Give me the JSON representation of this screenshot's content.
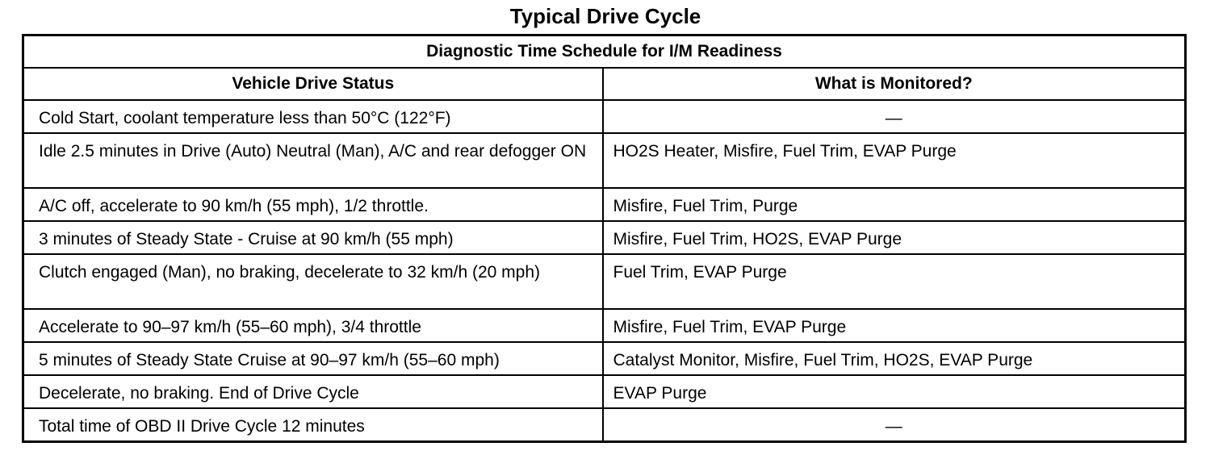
{
  "title": "Typical Drive Cycle",
  "table": {
    "caption": "Diagnostic Time Schedule for I/M Readiness",
    "headers": [
      "Vehicle Drive Status",
      "What is Monitored?"
    ],
    "rows": [
      {
        "status": "Cold Start, coolant temperature less than 50°C (122°F)",
        "monitored": "—"
      },
      {
        "status": "Idle 2.5 minutes in Drive (Auto) Neutral (Man), A/C and rear defogger ON",
        "monitored": "HO2S Heater, Misfire, Fuel Trim, EVAP Purge"
      },
      {
        "status": "A/C off, accelerate to 90 km/h (55 mph), 1/2 throttle.",
        "monitored": "Misfire, Fuel Trim, Purge"
      },
      {
        "status": "3 minutes of Steady State - Cruise at 90 km/h (55 mph)",
        "monitored": "Misfire, Fuel Trim, HO2S, EVAP Purge"
      },
      {
        "status": "Clutch engaged (Man), no braking, decelerate to 32 km/h (20 mph)",
        "monitored": "Fuel Trim, EVAP Purge"
      },
      {
        "status": "Accelerate to 90–97 km/h (55–60 mph), 3/4 throttle",
        "monitored": "Misfire, Fuel Trim, EVAP Purge"
      },
      {
        "status": "5 minutes of Steady State Cruise at 90–97 km/h (55–60 mph)",
        "monitored": "Catalyst Monitor, Misfire, Fuel Trim, HO2S, EVAP Purge"
      },
      {
        "status": "Decelerate, no braking. End of Drive Cycle",
        "monitored": "EVAP Purge"
      },
      {
        "status": "Total time of OBD II Drive Cycle 12 minutes",
        "monitored": "—"
      }
    ]
  }
}
